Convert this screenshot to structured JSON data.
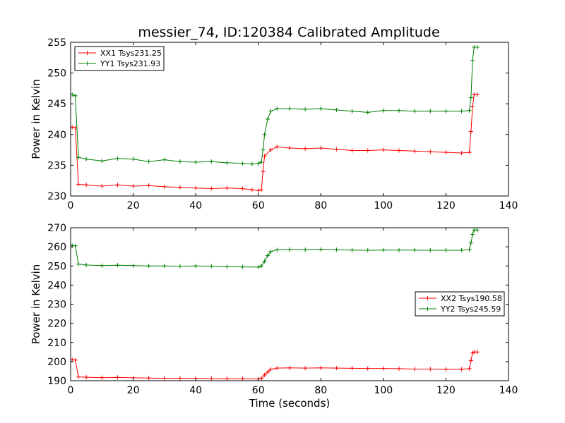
{
  "figure": {
    "title": "messier_74, ID:120384 Calibrated Amplitude"
  },
  "chart_data": [
    {
      "type": "line",
      "title": "messier_74, ID:120384 Calibrated Amplitude",
      "xlabel": "",
      "ylabel": "Power in Kelvin",
      "xlim": [
        0,
        140
      ],
      "ylim": [
        230,
        255
      ],
      "xticks": [
        0,
        20,
        40,
        60,
        80,
        100,
        120,
        140
      ],
      "yticks": [
        230,
        235,
        240,
        245,
        250,
        255
      ],
      "grid": false,
      "legend_position": "top-left",
      "marker": "+",
      "series": [
        {
          "name": "XX1 Tsys231.25",
          "color": "#ff0000",
          "points": [
            [
              0.5,
              241.2
            ],
            [
              1.5,
              241.1
            ],
            [
              2.5,
              231.9
            ],
            [
              5,
              231.8
            ],
            [
              10,
              231.6
            ],
            [
              15,
              231.8
            ],
            [
              20,
              231.6
            ],
            [
              25,
              231.7
            ],
            [
              30,
              231.5
            ],
            [
              35,
              231.4
            ],
            [
              40,
              231.3
            ],
            [
              45,
              231.2
            ],
            [
              50,
              231.3
            ],
            [
              55,
              231.2
            ],
            [
              58,
              231.0
            ],
            [
              60,
              230.9
            ],
            [
              61,
              231.0
            ],
            [
              61.5,
              234.0
            ],
            [
              62,
              236.5
            ],
            [
              64,
              237.5
            ],
            [
              66,
              238.0
            ],
            [
              70,
              237.8
            ],
            [
              75,
              237.7
            ],
            [
              80,
              237.8
            ],
            [
              85,
              237.6
            ],
            [
              90,
              237.4
            ],
            [
              95,
              237.4
            ],
            [
              100,
              237.5
            ],
            [
              105,
              237.4
            ],
            [
              110,
              237.3
            ],
            [
              115,
              237.2
            ],
            [
              120,
              237.1
            ],
            [
              125,
              237.0
            ],
            [
              127.5,
              237.1
            ],
            [
              128,
              240.5
            ],
            [
              128.5,
              244.5
            ],
            [
              129,
              246.5
            ],
            [
              130,
              246.5
            ]
          ]
        },
        {
          "name": "YY1 Tsys231.93",
          "color": "#008000",
          "points": [
            [
              0.5,
              246.5
            ],
            [
              1.5,
              246.3
            ],
            [
              2.5,
              236.3
            ],
            [
              5,
              236.0
            ],
            [
              10,
              235.7
            ],
            [
              15,
              236.1
            ],
            [
              20,
              236.0
            ],
            [
              25,
              235.6
            ],
            [
              30,
              235.9
            ],
            [
              35,
              235.6
            ],
            [
              40,
              235.5
            ],
            [
              45,
              235.6
            ],
            [
              50,
              235.4
            ],
            [
              55,
              235.3
            ],
            [
              58,
              235.2
            ],
            [
              60,
              235.3
            ],
            [
              61,
              235.5
            ],
            [
              61.5,
              237.5
            ],
            [
              62,
              240.0
            ],
            [
              63,
              242.5
            ],
            [
              64,
              243.8
            ],
            [
              66,
              244.2
            ],
            [
              70,
              244.2
            ],
            [
              75,
              244.1
            ],
            [
              80,
              244.2
            ],
            [
              85,
              244.0
            ],
            [
              90,
              243.8
            ],
            [
              95,
              243.6
            ],
            [
              100,
              243.9
            ],
            [
              105,
              243.9
            ],
            [
              110,
              243.8
            ],
            [
              115,
              243.8
            ],
            [
              120,
              243.8
            ],
            [
              125,
              243.8
            ],
            [
              127.5,
              243.9
            ],
            [
              128,
              246.0
            ],
            [
              128.5,
              252.0
            ],
            [
              129,
              254.2
            ],
            [
              130,
              254.2
            ]
          ]
        }
      ]
    },
    {
      "type": "line",
      "title": "",
      "xlabel": "Time (seconds)",
      "ylabel": "Power in Kelvin",
      "xlim": [
        0,
        140
      ],
      "ylim": [
        190,
        270
      ],
      "xticks": [
        0,
        20,
        40,
        60,
        80,
        100,
        120,
        140
      ],
      "yticks": [
        190,
        200,
        210,
        220,
        230,
        240,
        250,
        260,
        270
      ],
      "grid": false,
      "legend_position": "center-right",
      "marker": "+",
      "series": [
        {
          "name": "XX2 Tsys190.58",
          "color": "#ff0000",
          "points": [
            [
              0.5,
              201.0
            ],
            [
              1.5,
              200.8
            ],
            [
              2.5,
              192.0
            ],
            [
              5,
              191.8
            ],
            [
              10,
              191.6
            ],
            [
              15,
              191.7
            ],
            [
              20,
              191.5
            ],
            [
              25,
              191.4
            ],
            [
              30,
              191.3
            ],
            [
              35,
              191.3
            ],
            [
              40,
              191.2
            ],
            [
              45,
              191.1
            ],
            [
              50,
              191.0
            ],
            [
              55,
              191.0
            ],
            [
              60,
              190.9
            ],
            [
              61,
              191.2
            ],
            [
              62,
              193.0
            ],
            [
              63,
              194.5
            ],
            [
              64,
              196.0
            ],
            [
              66,
              196.6
            ],
            [
              70,
              196.7
            ],
            [
              75,
              196.6
            ],
            [
              80,
              196.7
            ],
            [
              85,
              196.6
            ],
            [
              90,
              196.5
            ],
            [
              95,
              196.4
            ],
            [
              100,
              196.4
            ],
            [
              105,
              196.3
            ],
            [
              110,
              196.1
            ],
            [
              115,
              196.1
            ],
            [
              120,
              196.0
            ],
            [
              125,
              196.0
            ],
            [
              127.5,
              196.3
            ],
            [
              128,
              200.5
            ],
            [
              128.5,
              204.5
            ],
            [
              129,
              205.0
            ],
            [
              130,
              205.0
            ]
          ]
        },
        {
          "name": "YY2 Tsys245.59",
          "color": "#008000",
          "points": [
            [
              0.5,
              260.7
            ],
            [
              1.5,
              260.5
            ],
            [
              2.5,
              251.0
            ],
            [
              5,
              250.5
            ],
            [
              10,
              250.2
            ],
            [
              15,
              250.4
            ],
            [
              20,
              250.2
            ],
            [
              25,
              250.0
            ],
            [
              30,
              250.0
            ],
            [
              35,
              249.9
            ],
            [
              40,
              250.0
            ],
            [
              45,
              249.9
            ],
            [
              50,
              249.6
            ],
            [
              55,
              249.5
            ],
            [
              60,
              249.4
            ],
            [
              61,
              250.0
            ],
            [
              62,
              252.5
            ],
            [
              63,
              255.5
            ],
            [
              64,
              257.5
            ],
            [
              66,
              258.5
            ],
            [
              70,
              258.6
            ],
            [
              75,
              258.5
            ],
            [
              80,
              258.7
            ],
            [
              85,
              258.5
            ],
            [
              90,
              258.3
            ],
            [
              95,
              258.2
            ],
            [
              100,
              258.3
            ],
            [
              105,
              258.3
            ],
            [
              110,
              258.3
            ],
            [
              115,
              258.2
            ],
            [
              120,
              258.2
            ],
            [
              125,
              258.2
            ],
            [
              127.5,
              258.5
            ],
            [
              128,
              262.0
            ],
            [
              128.5,
              266.5
            ],
            [
              129,
              268.8
            ],
            [
              130,
              268.8
            ]
          ]
        }
      ]
    }
  ]
}
